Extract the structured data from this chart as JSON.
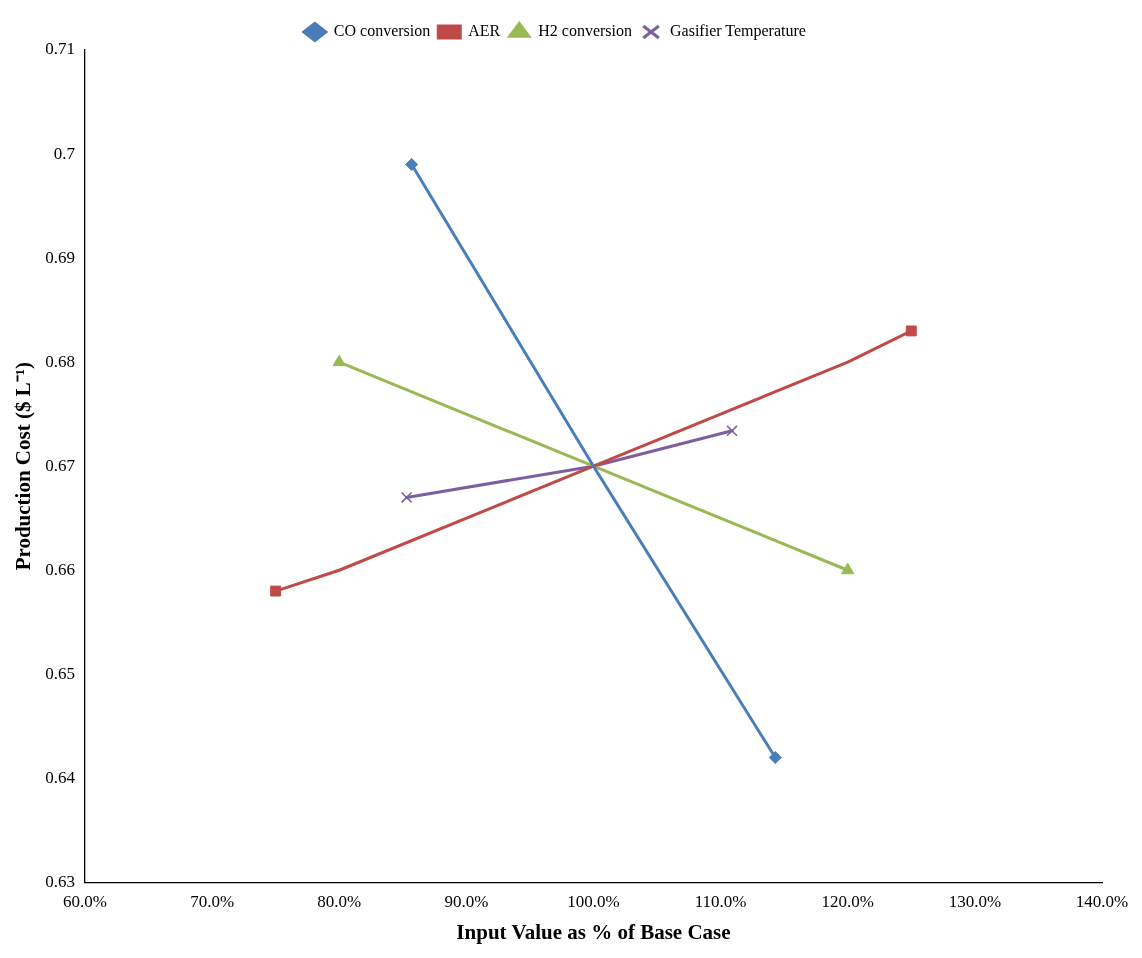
{
  "chart_data": {
    "type": "line",
    "xlabel": "Input Value as % of Base Case",
    "ylabel": "Production Cost ($ L⁻¹)",
    "xlim": [
      60,
      140
    ],
    "xticks": [
      {
        "value": 60,
        "label": "60.0%"
      },
      {
        "value": 70,
        "label": "70.0%"
      },
      {
        "value": 80,
        "label": "80.0%"
      },
      {
        "value": 90,
        "label": "90.0%"
      },
      {
        "value": 100,
        "label": "100.0%"
      },
      {
        "value": 110,
        "label": "110.0%"
      },
      {
        "value": 120,
        "label": "120.0%"
      },
      {
        "value": 130,
        "label": "130.0%"
      },
      {
        "value": 140,
        "label": "140.0%"
      }
    ],
    "ylim": [
      0.63,
      0.71
    ],
    "yticks": [
      0.63,
      0.64,
      0.65,
      0.66,
      0.67,
      0.68,
      0.69,
      0.7,
      0.71
    ],
    "grid": false,
    "legend": "top",
    "line_style": "solid",
    "series": [
      {
        "name": "CO conversion",
        "color": "#4a7ebb",
        "marker": "none",
        "x": [
          85.7,
          100,
          114.3
        ],
        "values": [
          0.699,
          0.67,
          0.642
        ]
      },
      {
        "name": "AER",
        "color": "#be4b48",
        "marker": "none",
        "x": [
          75,
          80,
          100,
          120,
          125
        ],
        "values": [
          0.658,
          0.66,
          0.67,
          0.68,
          0.683
        ]
      },
      {
        "name": "H2 conversion",
        "color": "#98b954",
        "marker": "none",
        "x": [
          80,
          100,
          120
        ],
        "values": [
          0.68,
          0.67,
          0.66
        ]
      },
      {
        "name": "Gasifier Temperature",
        "color": "#7d5fa0",
        "marker": "none",
        "x": [
          85.3,
          100,
          110.9
        ],
        "values": [
          0.667,
          0.67,
          0.6734
        ]
      },
      {
        "type": "scatter",
        "color": "#4a7ebb",
        "marker": "diamond",
        "x": [
          85.7,
          114.3
        ],
        "values": [
          0.699,
          0.642
        ]
      },
      {
        "type": "scatter",
        "color": "#be4b48",
        "marker": "square",
        "x": [
          75,
          125
        ],
        "values": [
          0.658,
          0.683
        ]
      },
      {
        "type": "scatter",
        "color": "#98b954",
        "marker": "triangle",
        "x": [
          80,
          120
        ],
        "values": [
          0.68,
          0.66
        ]
      },
      {
        "type": "scatter",
        "color": "#7d5fa0",
        "marker": "cross",
        "x": [
          85.3,
          110.9
        ],
        "values": [
          0.667,
          0.6734
        ]
      }
    ]
  }
}
